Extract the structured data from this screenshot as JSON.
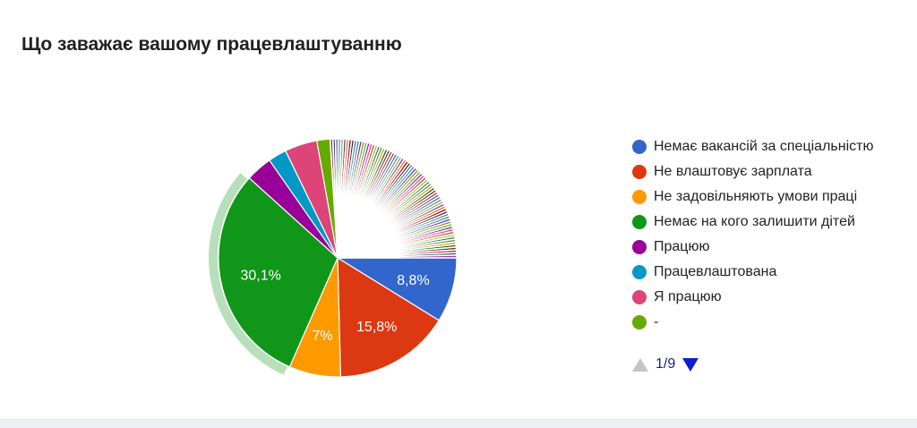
{
  "chart_data": {
    "type": "pie",
    "title": "Що заважає вашому працевлаштуванню",
    "slices": [
      {
        "label": "Немає вакансій за спеціальністю",
        "value": 8.8,
        "display": "8,8%",
        "color": "#3366cc"
      },
      {
        "label": "Не влаштовує зарплата",
        "value": 15.8,
        "display": "15,8%",
        "color": "#dc3912"
      },
      {
        "label": "Не задовільняють умови праці",
        "value": 7.0,
        "display": "7%",
        "color": "#ff9900"
      },
      {
        "label": "Немає на кого залишити дітей",
        "value": 30.1,
        "display": "30,1%",
        "color": "#109618"
      },
      {
        "label": "Працюю",
        "value": 3.6,
        "display": "",
        "color": "#990099"
      },
      {
        "label": "Працевлаштована",
        "value": 2.5,
        "display": "",
        "color": "#0099c6"
      },
      {
        "label": "Я працюю",
        "value": 4.4,
        "display": "",
        "color": "#dd4477"
      },
      {
        "label": "-",
        "value": 1.8,
        "display": "",
        "color": "#66aa00"
      }
    ],
    "small_slice_colors": [
      "#b82e2e",
      "#316395",
      "#994499",
      "#22aa99",
      "#aaaa11",
      "#6633cc",
      "#e67300",
      "#8b0707",
      "#651067",
      "#329262",
      "#5574a6",
      "#3b3eac",
      "#b77322",
      "#16d620",
      "#b91383",
      "#f4359e",
      "#9c5935",
      "#a9c413",
      "#2a778d",
      "#668d1c",
      "#bea413",
      "#0c5922",
      "#743411"
    ],
    "legend_position": "right",
    "highlighted_slice": "Немає на кого залишити дітей"
  },
  "legend": {
    "page": "1/9"
  }
}
